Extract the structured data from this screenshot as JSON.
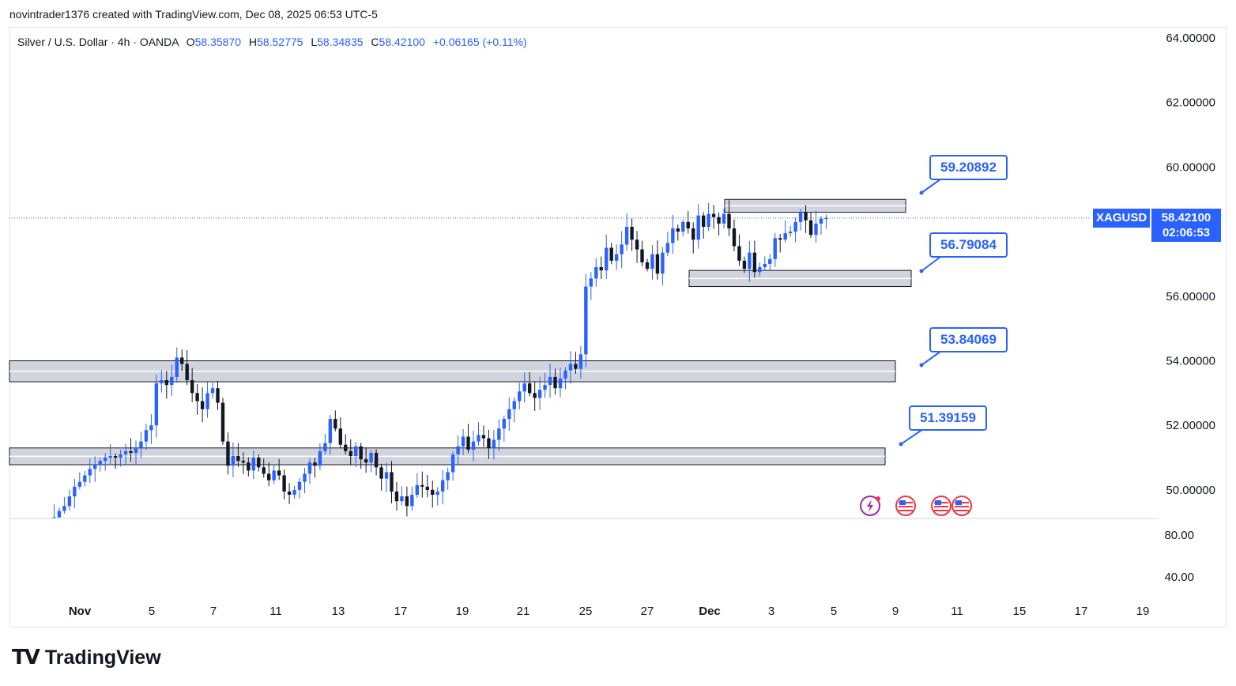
{
  "caption": "novintrader1376 created with TradingView.com, Dec 08, 2025 06:53 UTC-5",
  "legend": {
    "symbol_desc": "Silver / U.S. Dollar · 4h · OANDA",
    "o_label": "O",
    "o_value": "58.35870",
    "h_label": "H",
    "h_value": "58.52775",
    "l_label": "L",
    "l_value": "58.34835",
    "c_label": "C",
    "c_value": "58.42100",
    "change": "+0.06165 (+0.11%)"
  },
  "price_tag": {
    "symbol": "XAGUSD",
    "price": "58.42100",
    "countdown": "02:06:53"
  },
  "callouts": [
    "59.20892",
    "56.79084",
    "53.84069",
    "51.39159"
  ],
  "footer": {
    "brand": "TradingView"
  },
  "colors": {
    "up": "#2962ff",
    "down": "#131722",
    "zone": "#d1d4dc",
    "accent": "#2962ff"
  },
  "chart_data": {
    "type": "candlestick",
    "title": "Silver / U.S. Dollar · 4h · OANDA",
    "timeframe": "4h",
    "y_axis": {
      "labels": [
        "64.00000",
        "62.00000",
        "60.00000",
        "56.00000",
        "54.00000",
        "52.00000",
        "50.00000"
      ],
      "values": [
        64,
        62,
        60,
        56,
        54,
        52,
        50
      ],
      "range": [
        49.1,
        64.3
      ]
    },
    "sub_axis": {
      "labels": [
        "80.00",
        "40.00"
      ],
      "values": [
        80,
        40
      ]
    },
    "x_axis": {
      "labels": [
        "Nov",
        "5",
        "7",
        "11",
        "13",
        "17",
        "19",
        "21",
        "25",
        "27",
        "Dec",
        "3",
        "5",
        "9",
        "11",
        "15",
        "17",
        "19"
      ],
      "bold": [
        "Nov",
        "Dec"
      ]
    },
    "current_price": 58.421,
    "zones": [
      {
        "top": 59.0,
        "bottom": 58.6
      },
      {
        "top": 56.8,
        "bottom": 56.3
      },
      {
        "top": 54.0,
        "bottom": 53.35
      },
      {
        "top": 51.3,
        "bottom": 50.78
      }
    ],
    "closes": [
      49.0,
      49.15,
      49.35,
      49.5,
      49.8,
      50.1,
      50.25,
      50.45,
      50.65,
      50.8,
      50.9,
      51.0,
      51.05,
      51.0,
      51.1,
      51.2,
      51.15,
      51.3,
      51.5,
      51.85,
      52.0,
      53.3,
      53.4,
      53.25,
      53.5,
      54.1,
      53.9,
      53.4,
      53.0,
      52.75,
      52.5,
      53.0,
      53.15,
      52.7,
      51.5,
      50.75,
      51.05,
      50.9,
      50.85,
      50.6,
      51.0,
      50.7,
      50.5,
      50.3,
      50.6,
      50.45,
      49.95,
      49.85,
      50.0,
      50.25,
      50.5,
      50.85,
      50.75,
      51.2,
      51.45,
      52.2,
      51.9,
      51.4,
      51.2,
      51.05,
      51.35,
      50.95,
      50.85,
      51.15,
      50.7,
      50.35,
      50.55,
      49.95,
      49.65,
      49.8,
      49.5,
      49.85,
      50.15,
      50.1,
      50.0,
      49.85,
      49.95,
      50.3,
      50.55,
      51.1,
      51.35,
      51.65,
      51.25,
      51.5,
      51.7,
      51.6,
      51.3,
      51.55,
      51.9,
      52.2,
      52.5,
      52.75,
      53.05,
      53.3,
      53.0,
      52.85,
      53.1,
      53.25,
      53.5,
      53.15,
      53.45,
      53.7,
      53.9,
      53.75,
      54.2,
      56.3,
      56.55,
      56.9,
      56.8,
      57.5,
      57.1,
      57.3,
      57.6,
      58.15,
      57.75,
      57.45,
      57.05,
      56.85,
      57.3,
      56.7,
      57.35,
      57.65,
      58.1,
      58.0,
      58.3,
      58.1,
      57.75,
      58.5,
      58.15,
      58.55,
      58.45,
      58.25,
      58.55,
      58.1,
      57.55,
      57.1,
      56.85,
      57.35,
      56.75,
      56.9,
      57.0,
      57.15,
      57.8,
      57.75,
      57.95,
      58.0,
      58.3,
      58.6,
      58.35,
      57.9,
      58.25,
      58.4,
      58.421
    ]
  }
}
